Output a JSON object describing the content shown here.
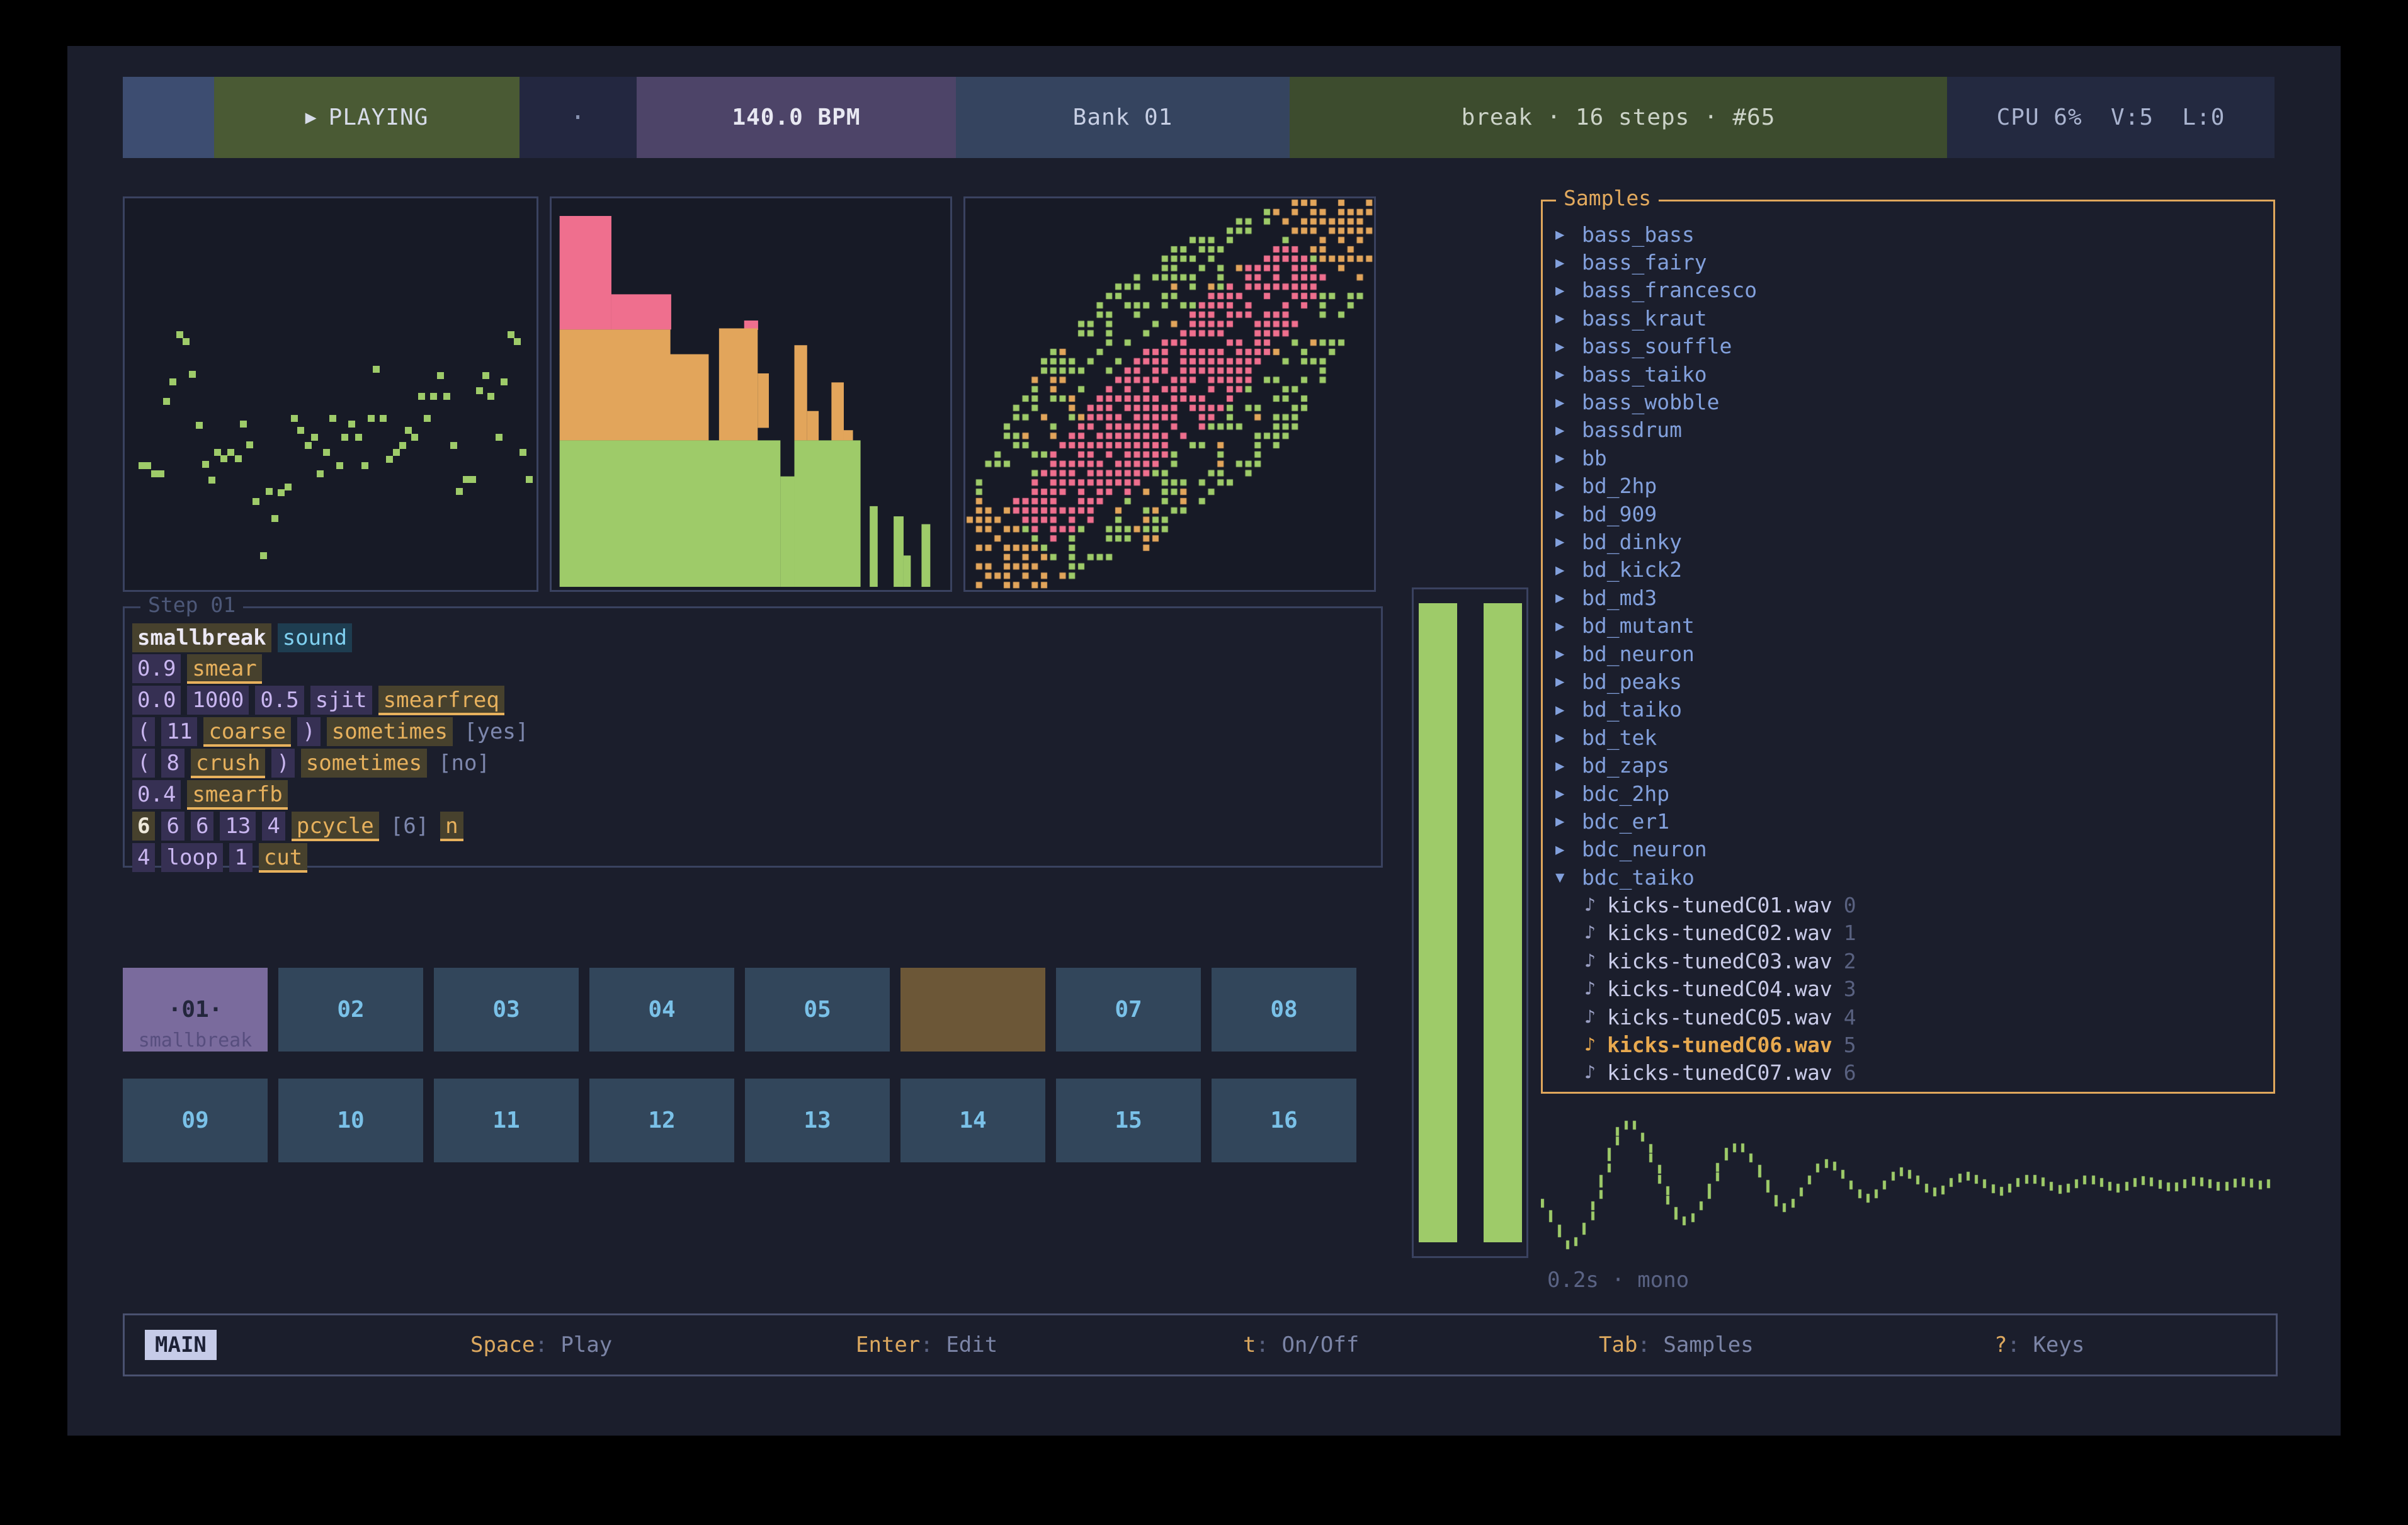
{
  "topbar": {
    "play_icon": "▶",
    "transport": "PLAYING",
    "dot": "·",
    "bpm": "140.0 BPM",
    "bank": "Bank 01",
    "pattern": "break · 16 steps · #65",
    "cpu": "CPU 6%  V:5  L:0"
  },
  "step_editor": {
    "title": "Step 01",
    "lines": [
      [
        {
          "t": "smallbreak",
          "k": "name"
        },
        {
          "t": "sound",
          "k": "sound"
        }
      ],
      [
        {
          "t": "0.9",
          "k": "val"
        },
        {
          "t": "smear",
          "k": "func"
        }
      ],
      [
        {
          "t": "0.0",
          "k": "val"
        },
        {
          "t": "1000",
          "k": "val"
        },
        {
          "t": "0.5",
          "k": "val"
        },
        {
          "t": "sjit",
          "k": "val"
        },
        {
          "t": "smearfreq",
          "k": "func"
        }
      ],
      [
        {
          "t": "(",
          "k": "val"
        },
        {
          "t": "11",
          "k": "val"
        },
        {
          "t": "coarse",
          "k": "func"
        },
        {
          "t": ")",
          "k": "val"
        },
        {
          "t": "sometimes",
          "k": "word"
        },
        {
          "t": "[yes]",
          "k": "br"
        }
      ],
      [
        {
          "t": "(",
          "k": "val"
        },
        {
          "t": "8",
          "k": "val"
        },
        {
          "t": "crush",
          "k": "func"
        },
        {
          "t": ")",
          "k": "val"
        },
        {
          "t": "sometimes",
          "k": "word"
        },
        {
          "t": "[no]",
          "k": "br"
        }
      ],
      [
        {
          "t": "0.4",
          "k": "val"
        },
        {
          "t": "smearfb",
          "k": "func"
        }
      ],
      [
        {
          "t": "6",
          "k": "hl"
        },
        {
          "t": "6",
          "k": "val"
        },
        {
          "t": "6",
          "k": "val"
        },
        {
          "t": "13",
          "k": "val"
        },
        {
          "t": "4",
          "k": "val"
        },
        {
          "t": "pcycle",
          "k": "func"
        },
        {
          "t": "[6]",
          "k": "br"
        },
        {
          "t": "n",
          "k": "func"
        }
      ],
      [
        {
          "t": "4",
          "k": "val"
        },
        {
          "t": "loop",
          "k": "val"
        },
        {
          "t": "1",
          "k": "val"
        },
        {
          "t": "cut",
          "k": "func"
        }
      ]
    ]
  },
  "step_grid": {
    "steps": [
      {
        "label": "·01·",
        "sub": "smallbreak",
        "state": "active"
      },
      {
        "label": "02",
        "state": "normal"
      },
      {
        "label": "03",
        "state": "normal"
      },
      {
        "label": "04",
        "state": "normal"
      },
      {
        "label": "05",
        "state": "normal"
      },
      {
        "label": "",
        "state": "playhead"
      },
      {
        "label": "07",
        "state": "normal"
      },
      {
        "label": "08",
        "state": "normal"
      },
      {
        "label": "09",
        "state": "normal"
      },
      {
        "label": "10",
        "state": "normal"
      },
      {
        "label": "11",
        "state": "normal"
      },
      {
        "label": "12",
        "state": "normal"
      },
      {
        "label": "13",
        "state": "normal"
      },
      {
        "label": "14",
        "state": "normal"
      },
      {
        "label": "15",
        "state": "normal"
      },
      {
        "label": "16",
        "state": "normal"
      }
    ]
  },
  "samples": {
    "title": "Samples",
    "folders": [
      {
        "name": "bass_bass",
        "expanded": false
      },
      {
        "name": "bass_fairy",
        "expanded": false
      },
      {
        "name": "bass_francesco",
        "expanded": false
      },
      {
        "name": "bass_kraut",
        "expanded": false
      },
      {
        "name": "bass_souffle",
        "expanded": false
      },
      {
        "name": "bass_taiko",
        "expanded": false
      },
      {
        "name": "bass_wobble",
        "expanded": false
      },
      {
        "name": "bassdrum",
        "expanded": false
      },
      {
        "name": "bb",
        "expanded": false
      },
      {
        "name": "bd_2hp",
        "expanded": false
      },
      {
        "name": "bd_909",
        "expanded": false
      },
      {
        "name": "bd_dinky",
        "expanded": false
      },
      {
        "name": "bd_kick2",
        "expanded": false
      },
      {
        "name": "bd_md3",
        "expanded": false
      },
      {
        "name": "bd_mutant",
        "expanded": false
      },
      {
        "name": "bd_neuron",
        "expanded": false
      },
      {
        "name": "bd_peaks",
        "expanded": false
      },
      {
        "name": "bd_taiko",
        "expanded": false
      },
      {
        "name": "bd_tek",
        "expanded": false
      },
      {
        "name": "bd_zaps",
        "expanded": false
      },
      {
        "name": "bdc_2hp",
        "expanded": false
      },
      {
        "name": "bdc_er1",
        "expanded": false
      },
      {
        "name": "bdc_neuron",
        "expanded": false
      },
      {
        "name": "bdc_taiko",
        "expanded": true
      }
    ],
    "files": [
      {
        "name": "kicks-tunedC01.wav",
        "index": 0,
        "selected": false
      },
      {
        "name": "kicks-tunedC02.wav",
        "index": 1,
        "selected": false
      },
      {
        "name": "kicks-tunedC03.wav",
        "index": 2,
        "selected": false
      },
      {
        "name": "kicks-tunedC04.wav",
        "index": 3,
        "selected": false
      },
      {
        "name": "kicks-tunedC05.wav",
        "index": 4,
        "selected": false
      },
      {
        "name": "kicks-tunedC06.wav",
        "index": 5,
        "selected": true
      },
      {
        "name": "kicks-tunedC07.wav",
        "index": 6,
        "selected": false
      }
    ]
  },
  "waveform": {
    "caption": "0.2s · mono",
    "samples": [
      -0.3,
      -0.55,
      -0.8,
      -1.0,
      -0.95,
      -0.7,
      -0.35,
      0.1,
      0.55,
      0.9,
      1.0,
      1.0,
      0.8,
      0.45,
      0.1,
      -0.25,
      -0.5,
      -0.6,
      -0.55,
      -0.35,
      -0.05,
      0.3,
      0.55,
      0.62,
      0.62,
      0.45,
      0.2,
      -0.05,
      -0.28,
      -0.38,
      -0.3,
      -0.12,
      0.08,
      0.28,
      0.36,
      0.32,
      0.18,
      0.0,
      -0.15,
      -0.22,
      -0.15,
      0.0,
      0.15,
      0.22,
      0.18,
      0.08,
      -0.05,
      -0.12,
      -0.08,
      0.04,
      0.12,
      0.15,
      0.1,
      0.02,
      -0.06,
      -0.1,
      -0.05,
      0.04,
      0.1,
      0.1,
      0.05,
      -0.02,
      -0.07,
      -0.05,
      0.02,
      0.08,
      0.08,
      0.04,
      -0.02,
      -0.05,
      -0.02,
      0.04,
      0.07,
      0.05,
      0.01,
      -0.03,
      -0.03,
      0.02,
      0.06,
      0.05,
      0.02,
      -0.02,
      -0.02,
      0.03,
      0.05,
      0.03,
      0.0,
      0.02
    ]
  },
  "statusbar": {
    "mode": "MAIN",
    "hints": [
      {
        "key": "Space",
        "desc": "Play"
      },
      {
        "key": "Enter",
        "desc": "Edit"
      },
      {
        "key": "t",
        "desc": "On/Off"
      },
      {
        "key": "Tab",
        "desc": "Samples"
      },
      {
        "key": "?",
        "desc": "Keys"
      }
    ]
  },
  "viz": {
    "scatter": {
      "points": [
        [
          12.6,
          34
        ],
        [
          14,
          35.7
        ],
        [
          15.6,
          44
        ],
        [
          10.8,
          46
        ],
        [
          9.4,
          51
        ],
        [
          17.3,
          57
        ],
        [
          28,
          56.8
        ],
        [
          21.7,
          64
        ],
        [
          24.9,
          64
        ],
        [
          23.3,
          65.6
        ],
        [
          26.7,
          65.6
        ],
        [
          29.5,
          62
        ],
        [
          18.8,
          67
        ],
        [
          3.3,
          67.4
        ],
        [
          4.8,
          67.4
        ],
        [
          6.4,
          69.4
        ],
        [
          8,
          69.4
        ],
        [
          20.4,
          71
        ],
        [
          34.3,
          74
        ],
        [
          37.2,
          74.2
        ],
        [
          38.8,
          72.9
        ],
        [
          31.1,
          76.5
        ],
        [
          35.7,
          80.8
        ],
        [
          32.8,
          90.3
        ],
        [
          40.3,
          55.3
        ],
        [
          41.9,
          58.3
        ],
        [
          43.7,
          62.2
        ],
        [
          45.3,
          60.1
        ],
        [
          48.2,
          64
        ],
        [
          46.6,
          69.4
        ],
        [
          49.7,
          55.3
        ],
        [
          51.3,
          67.4
        ],
        [
          52.6,
          60.1
        ],
        [
          54.3,
          56.8
        ],
        [
          56,
          60.1
        ],
        [
          57.5,
          67.4
        ],
        [
          59,
          55.3
        ],
        [
          60.3,
          42.7
        ],
        [
          62,
          55.3
        ],
        [
          63.5,
          65.7
        ],
        [
          65.2,
          64
        ],
        [
          66.6,
          62.2
        ],
        [
          68.1,
          58.3
        ],
        [
          69.6,
          60.1
        ],
        [
          71.3,
          49.7
        ],
        [
          72.6,
          55.3
        ],
        [
          74.1,
          49.7
        ],
        [
          75.8,
          44.3
        ],
        [
          77.3,
          49.7
        ],
        [
          79,
          62.2
        ],
        [
          80.5,
          73.9
        ],
        [
          82.1,
          70.9
        ],
        [
          83.7,
          70.9
        ],
        [
          85.3,
          48.2
        ],
        [
          86.9,
          44.3
        ],
        [
          88.1,
          49.7
        ],
        [
          90.1,
          60.1
        ],
        [
          91.3,
          46
        ],
        [
          93,
          33.9
        ],
        [
          94.5,
          35.7
        ],
        [
          95.8,
          64
        ],
        [
          97.4,
          70.9
        ]
      ]
    },
    "spectrum": {
      "rects": [
        [
          2,
          4.5,
          13,
          29,
          "p"
        ],
        [
          15,
          24.5,
          15,
          9,
          "p"
        ],
        [
          48.3,
          31.2,
          3.5,
          2.4,
          "p"
        ],
        [
          2,
          33.5,
          27.8,
          6.4,
          "o"
        ],
        [
          2,
          39.8,
          37.4,
          22,
          "o"
        ],
        [
          42,
          33.2,
          9.7,
          28.6,
          "o"
        ],
        [
          51.7,
          44.7,
          2.8,
          13.9,
          "o"
        ],
        [
          60.9,
          37.5,
          3.2,
          24.3,
          "o"
        ],
        [
          64.1,
          54.3,
          2.9,
          7.5,
          "o"
        ],
        [
          70.2,
          47,
          3.1,
          14.8,
          "o"
        ],
        [
          73.3,
          59.2,
          2.3,
          2.6,
          "o"
        ],
        [
          2,
          61.8,
          55.4,
          37.4,
          "g"
        ],
        [
          57.4,
          71,
          3.5,
          28.2,
          "g"
        ],
        [
          60.9,
          61.8,
          16.6,
          37.4,
          "g"
        ],
        [
          79.8,
          78.6,
          2,
          20.6,
          "g"
        ],
        [
          85.8,
          81.2,
          2.5,
          18,
          "g"
        ],
        [
          88.3,
          91.2,
          1.8,
          8,
          "g"
        ],
        [
          92.8,
          83.2,
          2.2,
          16,
          "g"
        ]
      ]
    },
    "phase": {
      "cols": 44,
      "rows": 42,
      "hmax": 0.28,
      "core_r": 0.42,
      "mid_r": 0.78,
      "core_p": 0.78,
      "mid_p": 0.3,
      "ring_p": 0.58,
      "tip_t": 0.14
    }
  },
  "colors": {
    "accent_green": "#9ecb69",
    "accent_pink": "#ef6f8e",
    "accent_orange": "#e2a55b",
    "folder_blue": "#82a0dc",
    "samples_border": "#dfa75c",
    "step_active": "#7a6b9d",
    "step_playhead": "#6c5737",
    "step_cell": "#32465b",
    "step_number": "#7ac1e8"
  }
}
